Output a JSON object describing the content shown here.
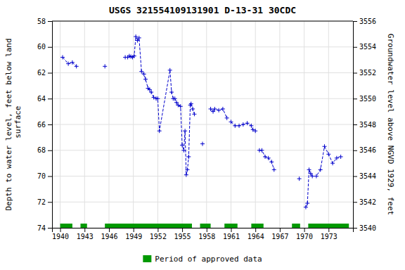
{
  "chart_data": {
    "type": "line",
    "title": "USGS 321554109131901 D-13-31 30CDC",
    "ylabel": "Depth to water level, feet below land\n surface",
    "y2label": "Groundwater level above NGVD 1929, feet",
    "x": [
      1940.3,
      1941.0,
      1941.5,
      1942.0,
      null,
      1945.5,
      null,
      1948.0,
      1948.3,
      1948.5,
      1948.7,
      1948.9,
      1949.1,
      1949.3,
      1949.5,
      1949.7,
      1950.0,
      1950.3,
      1950.5,
      1950.8,
      1951.0,
      1951.2,
      1951.5,
      1951.8,
      1952.0,
      1952.2,
      1953.5,
      1953.7,
      1953.9,
      1954.1,
      1954.3,
      1954.5,
      1954.8,
      1955.0,
      1955.2,
      1955.35,
      1955.5,
      1955.65,
      1955.8,
      1956.0,
      1956.1,
      1956.3,
      1956.5,
      null,
      1957.5,
      null,
      1958.5,
      1958.8,
      1959.0,
      1959.5,
      1960.0,
      1960.5,
      null,
      1961.0,
      1961.5,
      1962.0,
      1962.5,
      1963.0,
      1963.5,
      1963.7,
      1964.0,
      null,
      1964.5,
      1964.8,
      1965.2,
      1965.6,
      1966.0,
      1966.3,
      null,
      1969.4,
      null,
      1970.2,
      1970.4,
      1970.6,
      1970.8,
      1971.0,
      1971.5,
      1972.0,
      1972.5,
      1973.0,
      1973.5,
      1974.0,
      1974.5
    ],
    "series": [
      {
        "color": "#0000cc",
        "marker": "plus",
        "line_style": "dashed",
        "values": [
          60.8,
          61.3,
          61.2,
          61.5,
          null,
          61.5,
          null,
          60.8,
          60.8,
          60.7,
          60.75,
          60.8,
          60.7,
          59.2,
          59.5,
          59.3,
          61.9,
          62.1,
          62.5,
          63.2,
          63.3,
          63.5,
          63.9,
          64.0,
          64.0,
          66.5,
          61.8,
          63.5,
          64.0,
          64.0,
          64.3,
          64.5,
          64.6,
          67.6,
          68.0,
          66.5,
          69.9,
          69.5,
          68.5,
          64.5,
          64.4,
          64.8,
          65.2,
          null,
          67.5,
          null,
          64.8,
          65.0,
          64.8,
          64.9,
          64.8,
          65.5,
          null,
          65.8,
          66.1,
          66.1,
          66.0,
          65.9,
          66.1,
          66.4,
          66.5,
          null,
          68.0,
          68.0,
          68.5,
          68.6,
          68.9,
          69.5,
          null,
          70.2,
          null,
          72.4,
          72.1,
          69.5,
          69.8,
          70.0,
          70.0,
          69.5,
          67.7,
          68.3,
          69.0,
          68.6,
          68.5
        ]
      },
      {
        "name": "Period of approved data",
        "type": "range",
        "color": "#009900",
        "ranges": [
          [
            1940.0,
            1941.5
          ],
          [
            1942.5,
            1943.3
          ],
          [
            1945.5,
            1956.2
          ],
          [
            1957.2,
            1958.5
          ],
          [
            1960.2,
            1961.8
          ],
          [
            1963.5,
            1965.0
          ],
          [
            1968.5,
            1969.5
          ],
          [
            1970.5,
            1975.5
          ]
        ]
      }
    ],
    "xlim": [
      1939,
      1976
    ],
    "xticks": [
      1940,
      1943,
      1946,
      1949,
      1952,
      1955,
      1958,
      1961,
      1964,
      1967,
      1970,
      1973
    ],
    "ylim": [
      74,
      58
    ],
    "yticks": [
      58,
      60,
      62,
      64,
      66,
      68,
      70,
      72,
      74
    ],
    "y2lim": [
      3540,
      3556
    ],
    "y2ticks": [
      3540,
      3542,
      3544,
      3546,
      3548,
      3550,
      3552,
      3554,
      3556
    ],
    "grid": true,
    "legend": "bottom"
  }
}
